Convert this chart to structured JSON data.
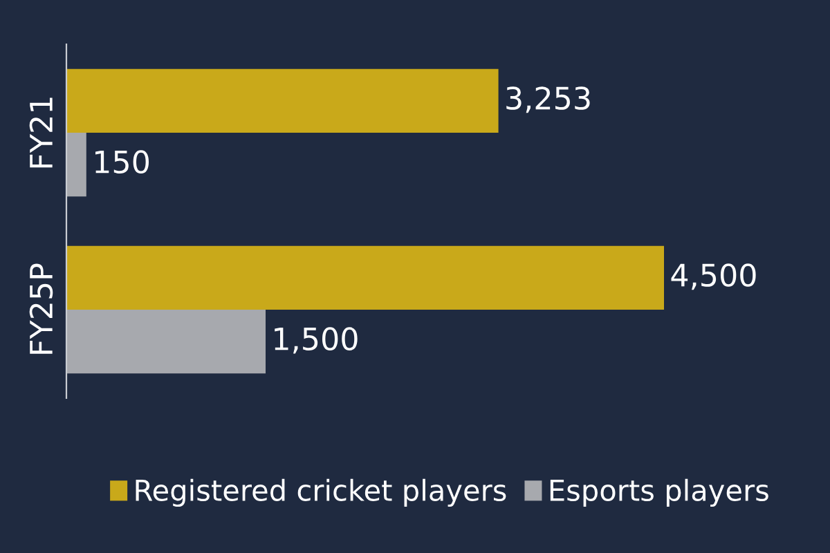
{
  "chart_data": {
    "type": "bar",
    "orientation": "horizontal",
    "categories": [
      "FY21",
      "FY25P"
    ],
    "series": [
      {
        "name": "Registered cricket players",
        "color": "#c9a91a",
        "values": [
          3253,
          4500
        ],
        "value_labels": [
          "3,253",
          "4,500"
        ]
      },
      {
        "name": "Esports players",
        "color": "#a7a9ae",
        "values": [
          150,
          1500
        ],
        "value_labels": [
          "150",
          "1,500"
        ]
      }
    ],
    "legend": "bottom",
    "grid": false,
    "tick_labels": "y"
  }
}
